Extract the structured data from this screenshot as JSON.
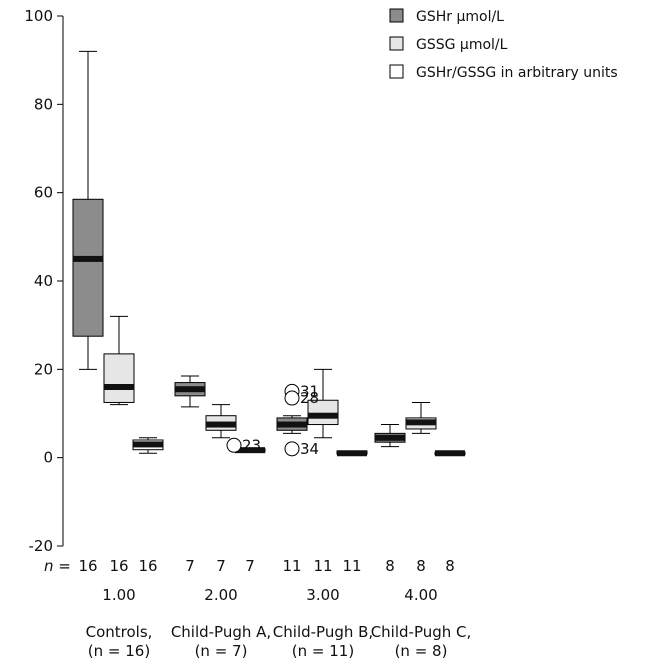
{
  "chart_data": {
    "type": "boxplot",
    "ylim": [
      -20,
      100
    ],
    "yticks": [
      -20,
      0,
      20,
      40,
      60,
      80,
      100
    ],
    "n_prefix": "n =",
    "groups": [
      {
        "code": "1.00",
        "name": "Controls,",
        "n_text": "(n = 16)",
        "n": [
          16,
          16,
          16
        ]
      },
      {
        "code": "2.00",
        "name": "Child-Pugh A,",
        "n_text": "(n = 7)",
        "n": [
          7,
          7,
          7
        ]
      },
      {
        "code": "3.00",
        "name": "Child-Pugh B,",
        "n_text": "(n = 11)",
        "n": [
          11,
          11,
          11
        ]
      },
      {
        "code": "4.00",
        "name": "Child-Pugh C,",
        "n_text": "(n = 8)",
        "n": [
          8,
          8,
          8
        ]
      }
    ],
    "series": [
      {
        "name": "GSHr μmol/L",
        "color": "#8c8c8c"
      },
      {
        "name": "GSSG μmol/L",
        "color": "#e6e6e6"
      },
      {
        "name": "GSHr/GSSG in arbitrary units",
        "color": "#ffffff"
      }
    ],
    "boxes": [
      {
        "group": 0,
        "series": 0,
        "min": 20,
        "q1": 27.5,
        "median": 45,
        "q3": 58.5,
        "max": 92
      },
      {
        "group": 0,
        "series": 1,
        "min": 12,
        "q1": 12.5,
        "median": 16,
        "q3": 23.5,
        "max": 32
      },
      {
        "group": 0,
        "series": 2,
        "min": 1,
        "q1": 1.8,
        "median": 3,
        "q3": 4,
        "max": 4.5
      },
      {
        "group": 1,
        "series": 0,
        "min": 11.5,
        "q1": 14,
        "median": 15.5,
        "q3": 17,
        "max": 18.5
      },
      {
        "group": 1,
        "series": 1,
        "min": 4.5,
        "q1": 6.2,
        "median": 7.5,
        "q3": 9.5,
        "max": 12
      },
      {
        "group": 1,
        "series": 2,
        "min": 1.3,
        "q1": 1.3,
        "median": 1.7,
        "q3": 2,
        "max": 2
      },
      {
        "group": 2,
        "series": 0,
        "min": 5.5,
        "q1": 6.2,
        "median": 7.5,
        "q3": 9,
        "max": 9.5
      },
      {
        "group": 2,
        "series": 1,
        "min": 4.5,
        "q1": 7.5,
        "median": 9.5,
        "q3": 13,
        "max": 20
      },
      {
        "group": 2,
        "series": 2,
        "min": 0.8,
        "q1": 0.8,
        "median": 1,
        "q3": 1.5,
        "max": 1.5
      },
      {
        "group": 3,
        "series": 0,
        "min": 2.5,
        "q1": 3.5,
        "median": 4.5,
        "q3": 5.5,
        "max": 7.5
      },
      {
        "group": 3,
        "series": 1,
        "min": 5.5,
        "q1": 6.5,
        "median": 8,
        "q3": 9,
        "max": 12.5
      },
      {
        "group": 3,
        "series": 2,
        "min": 0.7,
        "q1": 0.7,
        "median": 1,
        "q3": 1.2,
        "max": 1.2
      }
    ],
    "outliers": [
      {
        "group": 1,
        "series": 2,
        "y": 2.8,
        "label": "23"
      },
      {
        "group": 2,
        "series": 0,
        "y": 15,
        "label": "31"
      },
      {
        "group": 2,
        "series": 0,
        "y": 13.5,
        "label": "28"
      },
      {
        "group": 2,
        "series": 0,
        "y": 2,
        "label": "34"
      }
    ],
    "legend_position": "top-right"
  }
}
